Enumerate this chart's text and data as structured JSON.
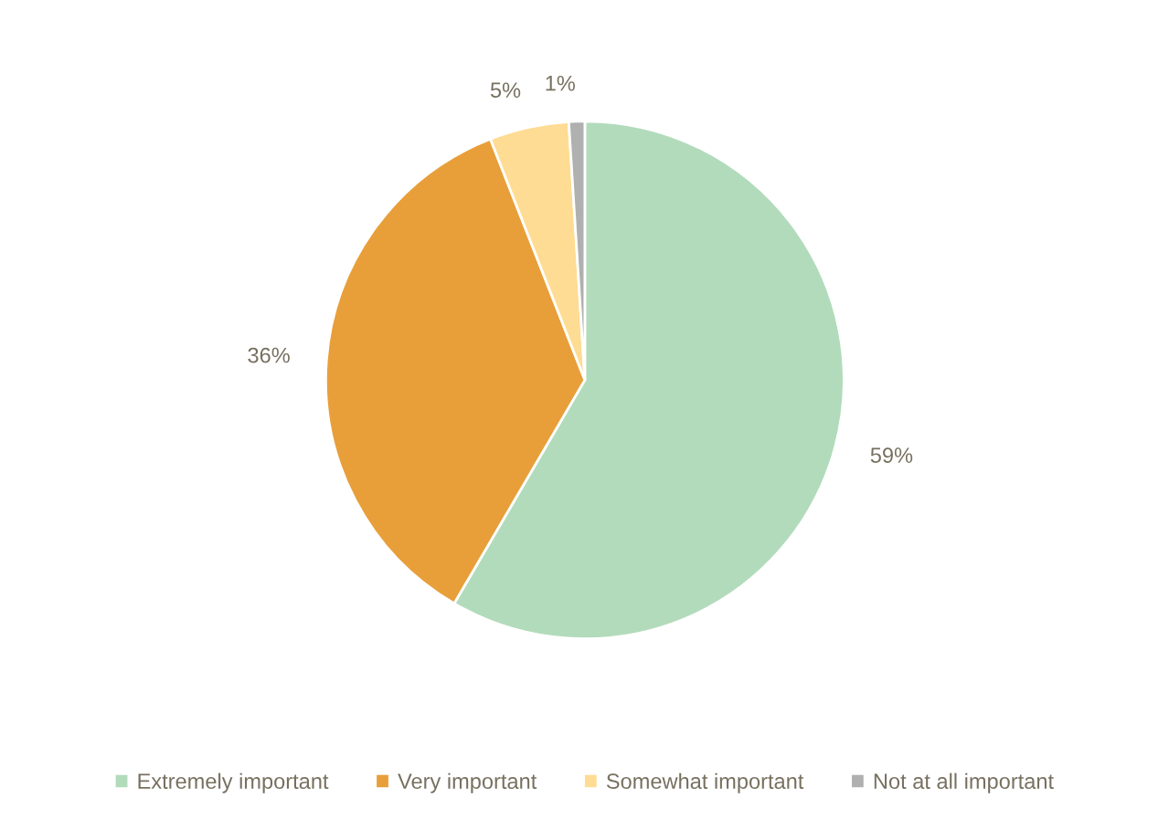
{
  "chart_data": {
    "type": "pie",
    "categories": [
      "Extremely important",
      "Very important",
      "Somewhat important",
      "Not at all important"
    ],
    "values": [
      59,
      36,
      5,
      1
    ],
    "colors": [
      "#b2dbbb",
      "#e89f3a",
      "#fedc93",
      "#b0b0b0"
    ],
    "value_labels": [
      "59%",
      "36%",
      "5%",
      "1%"
    ],
    "legend": "bottom"
  }
}
